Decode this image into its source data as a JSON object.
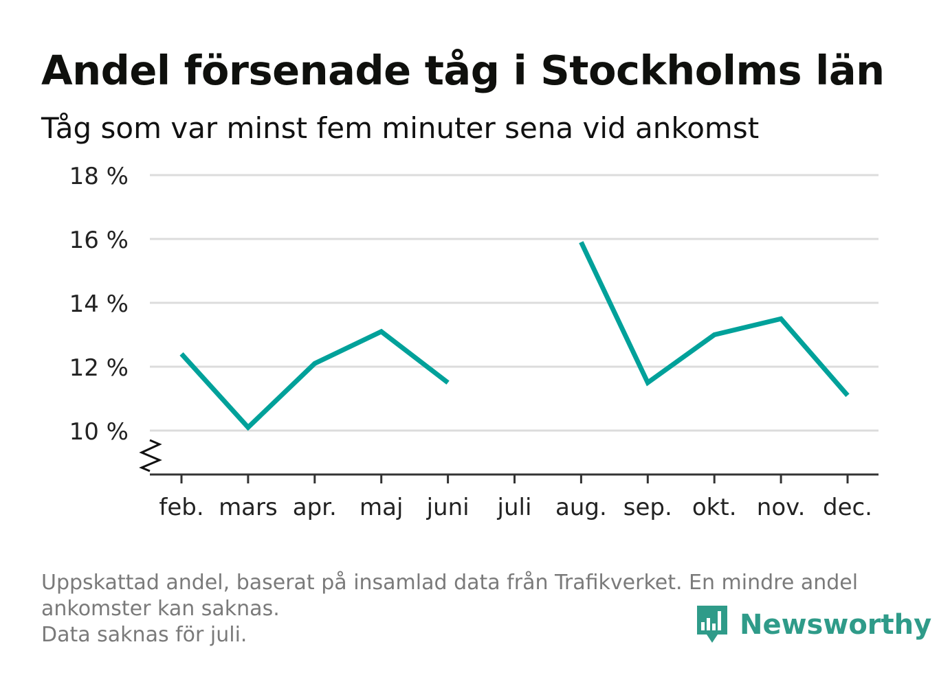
{
  "title": "Andel försenade tåg i Stockholms län",
  "subtitle": "Tåg som var minst fem minuter sena vid ankomst",
  "footnote": {
    "line1": "Uppskattad andel, baserat på insamlad data från Trafikverket. En mindre andel",
    "line2": "ankomster kan saknas.",
    "line3": "Data saknas för juli."
  },
  "brand": {
    "name": "Newsworthy",
    "color": "#2f9b89"
  },
  "chart_data": {
    "type": "line",
    "categories": [
      "feb.",
      "mars",
      "apr.",
      "maj",
      "juni",
      "juli",
      "aug.",
      "sep.",
      "okt.",
      "nov.",
      "dec."
    ],
    "series": [
      {
        "values": [
          12.4,
          10.1,
          12.1,
          13.1,
          11.5,
          null,
          15.9,
          11.5,
          13.0,
          13.5,
          11.1
        ]
      }
    ],
    "y_ticks": [
      10,
      12,
      14,
      16,
      18
    ],
    "y_tick_labels": [
      "10 %",
      "12 %",
      "14 %",
      "16 %",
      "18 %"
    ],
    "ylim": [
      8.6,
      18
    ],
    "axis_break": true,
    "grid": true,
    "line_color": "#00a19a",
    "xlabel": "",
    "ylabel": ""
  }
}
